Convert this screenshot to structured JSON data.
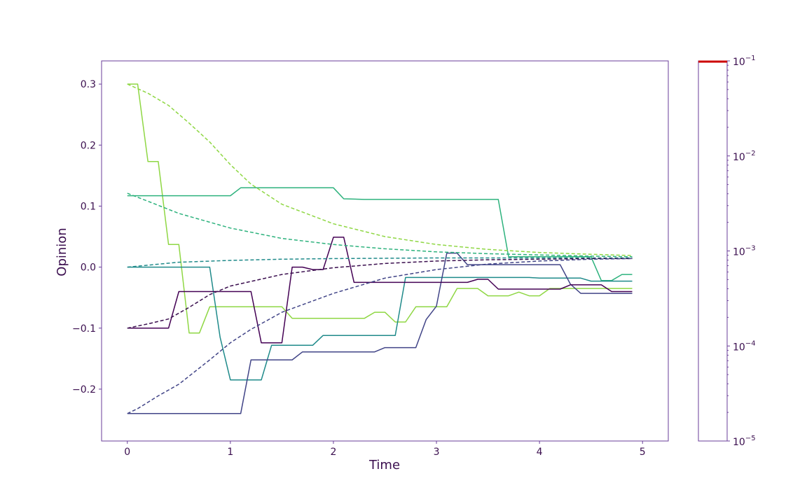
{
  "chart_data": {
    "type": "line",
    "title": "",
    "xlabel": "Time",
    "ylabel": "Opinion",
    "xlim": [
      -0.25,
      5.25
    ],
    "ylim": [
      -0.285,
      0.338
    ],
    "xticks": [
      0,
      1,
      2,
      3,
      4,
      5
    ],
    "xtick_labels": [
      "0",
      "1",
      "2",
      "3",
      "4",
      "5"
    ],
    "yticks": [
      -0.2,
      -0.1,
      0.0,
      0.1,
      0.2,
      0.3
    ],
    "ytick_labels": [
      "−0.2",
      "−0.1",
      "0.0",
      "0.1",
      "0.2",
      "0.3"
    ],
    "grid": false,
    "series": [
      {
        "style": "solid",
        "color": "#8fd744",
        "points": [
          [
            0,
            0.3
          ],
          [
            0.1,
            0.3
          ],
          [
            0.2,
            0.173
          ],
          [
            0.3,
            0.173
          ],
          [
            0.4,
            0.037
          ],
          [
            0.5,
            0.037
          ],
          [
            0.6,
            -0.108
          ],
          [
            0.7,
            -0.108
          ],
          [
            0.8,
            -0.065
          ],
          [
            1.5,
            -0.065
          ],
          [
            1.6,
            -0.084
          ],
          [
            2.3,
            -0.084
          ],
          [
            2.4,
            -0.074
          ],
          [
            2.5,
            -0.074
          ],
          [
            2.6,
            -0.09
          ],
          [
            2.7,
            -0.09
          ],
          [
            2.8,
            -0.065
          ],
          [
            3.0,
            -0.065
          ],
          [
            3.1,
            -0.065
          ],
          [
            3.2,
            -0.035
          ],
          [
            3.4,
            -0.035
          ],
          [
            3.5,
            -0.047
          ],
          [
            3.7,
            -0.047
          ],
          [
            3.8,
            -0.041
          ],
          [
            3.9,
            -0.047
          ],
          [
            4.0,
            -0.047
          ],
          [
            4.1,
            -0.035
          ],
          [
            4.9,
            -0.035
          ]
        ]
      },
      {
        "style": "solid",
        "color": "#2db27d",
        "points": [
          [
            0,
            0.117
          ],
          [
            1.0,
            0.117
          ],
          [
            1.1,
            0.13
          ],
          [
            2.0,
            0.13
          ],
          [
            2.1,
            0.112
          ],
          [
            2.3,
            0.111
          ],
          [
            3.6,
            0.111
          ],
          [
            3.7,
            0.017
          ],
          [
            4.5,
            0.017
          ],
          [
            4.6,
            -0.022
          ],
          [
            4.7,
            -0.022
          ],
          [
            4.8,
            -0.012
          ],
          [
            4.9,
            -0.012
          ]
        ]
      },
      {
        "style": "solid",
        "color": "#1f8a8a",
        "points": [
          [
            0,
            0.0
          ],
          [
            0.8,
            0.0
          ],
          [
            0.9,
            -0.115
          ],
          [
            1.0,
            -0.185
          ],
          [
            1.3,
            -0.185
          ],
          [
            1.4,
            -0.128
          ],
          [
            1.8,
            -0.128
          ],
          [
            1.9,
            -0.112
          ],
          [
            2.6,
            -0.112
          ],
          [
            2.7,
            -0.017
          ],
          [
            3.9,
            -0.017
          ],
          [
            4.0,
            -0.018
          ],
          [
            4.4,
            -0.018
          ],
          [
            4.5,
            -0.023
          ],
          [
            4.9,
            -0.023
          ]
        ]
      },
      {
        "style": "solid",
        "color": "#414487",
        "points": [
          [
            0,
            -0.24
          ],
          [
            1.1,
            -0.24
          ],
          [
            1.2,
            -0.152
          ],
          [
            1.6,
            -0.152
          ],
          [
            1.7,
            -0.139
          ],
          [
            2.4,
            -0.139
          ],
          [
            2.5,
            -0.132
          ],
          [
            2.8,
            -0.132
          ],
          [
            2.9,
            -0.086
          ],
          [
            3.0,
            -0.064
          ],
          [
            3.1,
            0.023
          ],
          [
            3.2,
            0.023
          ],
          [
            3.3,
            0.004
          ],
          [
            4.2,
            0.004
          ],
          [
            4.3,
            -0.028
          ],
          [
            4.4,
            -0.043
          ],
          [
            4.9,
            -0.043
          ]
        ]
      },
      {
        "style": "solid",
        "color": "#440154",
        "points": [
          [
            0,
            -0.1
          ],
          [
            0.4,
            -0.1
          ],
          [
            0.5,
            -0.04
          ],
          [
            1.2,
            -0.04
          ],
          [
            1.3,
            -0.124
          ],
          [
            1.5,
            -0.124
          ],
          [
            1.6,
            0.0
          ],
          [
            1.7,
            0.0
          ],
          [
            1.8,
            -0.004
          ],
          [
            1.9,
            -0.004
          ],
          [
            2.0,
            0.049
          ],
          [
            2.1,
            0.049
          ],
          [
            2.2,
            -0.025
          ],
          [
            3.3,
            -0.025
          ],
          [
            3.4,
            -0.02
          ],
          [
            3.5,
            -0.02
          ],
          [
            3.6,
            -0.036
          ],
          [
            4.2,
            -0.036
          ],
          [
            4.3,
            -0.029
          ],
          [
            4.6,
            -0.029
          ],
          [
            4.7,
            -0.04
          ],
          [
            4.9,
            -0.04
          ]
        ]
      },
      {
        "style": "dashed",
        "color": "#8fd744",
        "points": [
          [
            0,
            0.3
          ],
          [
            0.2,
            0.285
          ],
          [
            0.4,
            0.265
          ],
          [
            0.6,
            0.236
          ],
          [
            0.8,
            0.205
          ],
          [
            1.0,
            0.168
          ],
          [
            1.2,
            0.136
          ],
          [
            1.5,
            0.103
          ],
          [
            2.0,
            0.071
          ],
          [
            2.5,
            0.05
          ],
          [
            3.0,
            0.037
          ],
          [
            3.5,
            0.029
          ],
          [
            4.0,
            0.024
          ],
          [
            4.5,
            0.021
          ],
          [
            4.9,
            0.019
          ]
        ]
      },
      {
        "style": "dashed",
        "color": "#2db27d",
        "points": [
          [
            0,
            0.121
          ],
          [
            0.2,
            0.108
          ],
          [
            0.5,
            0.088
          ],
          [
            1.0,
            0.064
          ],
          [
            1.5,
            0.047
          ],
          [
            2.0,
            0.037
          ],
          [
            2.5,
            0.03
          ],
          [
            3.0,
            0.025
          ],
          [
            3.5,
            0.022
          ],
          [
            4.0,
            0.02
          ],
          [
            4.5,
            0.018
          ],
          [
            4.9,
            0.017
          ]
        ]
      },
      {
        "style": "dashed",
        "color": "#1f8a8a",
        "points": [
          [
            0,
            0.0
          ],
          [
            0.5,
            0.008
          ],
          [
            1.0,
            0.011
          ],
          [
            1.5,
            0.013
          ],
          [
            2.0,
            0.014
          ],
          [
            3.0,
            0.015
          ],
          [
            4.0,
            0.015
          ],
          [
            4.9,
            0.015
          ]
        ]
      },
      {
        "style": "dashed",
        "color": "#3b0f4f",
        "points": [
          [
            0,
            -0.1
          ],
          [
            0.2,
            -0.093
          ],
          [
            0.4,
            -0.085
          ],
          [
            0.6,
            -0.066
          ],
          [
            0.8,
            -0.045
          ],
          [
            1.0,
            -0.031
          ],
          [
            1.5,
            -0.012
          ],
          [
            2.0,
            -0.001
          ],
          [
            2.5,
            0.006
          ],
          [
            3.0,
            0.01
          ],
          [
            3.5,
            0.012
          ],
          [
            4.0,
            0.013
          ],
          [
            4.5,
            0.014
          ],
          [
            4.9,
            0.014
          ]
        ]
      },
      {
        "style": "dashed",
        "color": "#414487",
        "points": [
          [
            0,
            -0.24
          ],
          [
            0.1,
            -0.232
          ],
          [
            0.3,
            -0.211
          ],
          [
            0.5,
            -0.192
          ],
          [
            0.8,
            -0.152
          ],
          [
            1.0,
            -0.124
          ],
          [
            1.2,
            -0.102
          ],
          [
            1.5,
            -0.074
          ],
          [
            2.0,
            -0.043
          ],
          [
            2.5,
            -0.018
          ],
          [
            3.0,
            -0.004
          ],
          [
            3.5,
            0.005
          ],
          [
            4.0,
            0.01
          ],
          [
            4.5,
            0.013
          ],
          [
            4.9,
            0.014
          ]
        ]
      }
    ]
  },
  "colorbar": {
    "scale": "log",
    "range": [
      1e-05,
      0.1
    ],
    "tick_bases": [
      "10",
      "10",
      "10",
      "10",
      "10"
    ],
    "tick_exponents": [
      "−5",
      "−4",
      "−3",
      "−2",
      "−1"
    ],
    "tick_values": [
      1e-05,
      0.0001,
      0.001,
      0.01,
      0.1
    ],
    "marker_value": 0.1,
    "marker_color": "#cc0000"
  },
  "colors": {
    "frame": "#6a3d9a",
    "text": "#3b0f4f"
  }
}
